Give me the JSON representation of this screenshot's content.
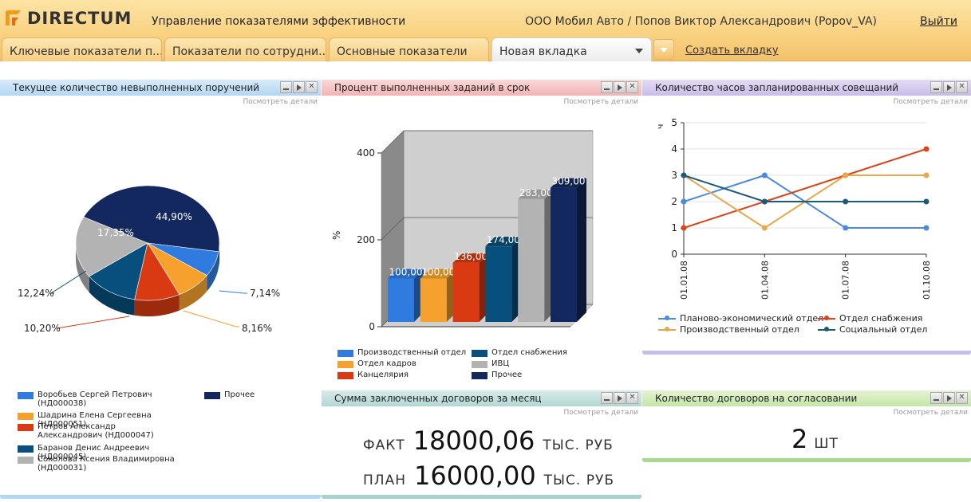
{
  "header": {
    "logo_text": "DIRECTUM",
    "app_title": "Управление показателями эффективности",
    "user": "ООО Мобил Авто / Попов Виктор Александрович (Popov_VA)",
    "logout": "Выйти"
  },
  "tabs": [
    {
      "label": "Ключевые показатели п..."
    },
    {
      "label": "Показатели по сотрудни..."
    },
    {
      "label": "Основные показатели"
    },
    {
      "label": "Новая вкладка"
    }
  ],
  "create_tab": "Создать вкладку",
  "widget_common": {
    "details_label": "Посмотреть детали"
  },
  "widgets": {
    "pie": {
      "title": "Текущее количество невыполненных поручений",
      "labels": [
        "44,90%",
        "7,14%",
        "8,16%",
        "10,20%",
        "12,24%",
        "17,35%"
      ],
      "legend": [
        {
          "label": "Воробьев Сергей Петрович (НД000038)",
          "color": "#2f7be0"
        },
        {
          "label": "Шадрина Елена Сергеевна (НД000051)",
          "color": "#f6a12d"
        },
        {
          "label": "Петров Александр Александрович (НД000047)",
          "color": "#d93a12"
        },
        {
          "label": "Баранов Денис Андреевич (НД000045)",
          "color": "#074f7d"
        },
        {
          "label": "Соколова Ксения Владимировна (НД000031)",
          "color": "#b3b3b3"
        },
        {
          "label": "Прочее",
          "color": "#13285e"
        }
      ]
    },
    "bar": {
      "title": "Процент выполненных заданий в срок",
      "ylabel": "%",
      "ticks": [
        "0",
        "200",
        "400"
      ],
      "value_labels": [
        "100,00",
        "100,00",
        "136,00",
        "174,00",
        "283,00",
        "309,00"
      ],
      "legend": [
        {
          "label": "Производственный отдел",
          "color": "#2f7be0"
        },
        {
          "label": "Отдел снабжения",
          "color": "#074f7d"
        },
        {
          "label": "Отдел кадров",
          "color": "#f6a12d"
        },
        {
          "label": "ИВЦ",
          "color": "#b3b3b3"
        },
        {
          "label": "Канцелярия",
          "color": "#d93a12"
        },
        {
          "label": "Прочее",
          "color": "#13285e"
        }
      ]
    },
    "line": {
      "title": "Количество часов запланированных совещаний",
      "ylabel": "ч",
      "yticks": [
        "0",
        "1",
        "2",
        "3",
        "4",
        "5"
      ],
      "xticks": [
        "01.01.08",
        "01.04.08",
        "01.07.08",
        "01.10.08"
      ],
      "legend": [
        {
          "label": "Планово-экономический отдел",
          "color": "#4a8be0"
        },
        {
          "label": "Отдел снабжения",
          "color": "#d9441a"
        },
        {
          "label": "Производственный отдел",
          "color": "#e8a74a"
        },
        {
          "label": "Социальный отдел",
          "color": "#1b5a7a"
        }
      ]
    },
    "contracts": {
      "title": "Сумма заключенных договоров за месяц",
      "fact_label": "ФАКТ",
      "fact_value": "18000,06",
      "plan_label": "ПЛАН",
      "plan_value": "16000,00",
      "unit": "ТЫС. РУБ"
    },
    "approval": {
      "title": "Количество договоров на согласовании",
      "value": "2",
      "unit": "ШТ"
    }
  },
  "chart_data": [
    {
      "type": "pie",
      "categories": [
        "Прочее",
        "Воробьев Сергей Петрович (НД000038)",
        "Шадрина Елена Сергеевна (НД000051)",
        "Петров Александр Александрович (НД000047)",
        "Баранов Денис Андреевич (НД000045)",
        "Соколова Ксения Владимировна (НД000031)"
      ],
      "values": [
        44.9,
        7.14,
        8.16,
        10.2,
        12.24,
        17.35
      ],
      "colors": [
        "#13285e",
        "#2f7be0",
        "#f6a12d",
        "#d93a12",
        "#074f7d",
        "#b3b3b3"
      ]
    },
    {
      "type": "bar",
      "categories": [
        "Производственный отдел",
        "Отдел кадров",
        "Канцелярия",
        "Отдел снабжения",
        "ИВЦ",
        "Прочее"
      ],
      "values": [
        100.0,
        100.0,
        136.0,
        174.0,
        283.0,
        309.0
      ],
      "colors": [
        "#2f7be0",
        "#f6a12d",
        "#d93a12",
        "#074f7d",
        "#b3b3b3",
        "#13285e"
      ],
      "ylim": [
        0,
        400
      ],
      "ylabel": "%"
    },
    {
      "type": "line",
      "x": [
        "01.01.08",
        "01.04.08",
        "01.07.08",
        "01.10.08"
      ],
      "ylim": [
        0,
        5
      ],
      "ylabel": "ч",
      "series": [
        {
          "name": "Планово-экономический отдел",
          "values": [
            2,
            3,
            1,
            1
          ],
          "color": "#4a8be0"
        },
        {
          "name": "Отдел снабжения",
          "values": [
            1,
            2,
            3,
            4
          ],
          "color": "#d9441a"
        },
        {
          "name": "Производственный отдел",
          "values": [
            3,
            1,
            3,
            3
          ],
          "color": "#e8a74a"
        },
        {
          "name": "Социальный отдел",
          "values": [
            3,
            2,
            2,
            2
          ],
          "color": "#1b5a7a"
        }
      ]
    }
  ]
}
